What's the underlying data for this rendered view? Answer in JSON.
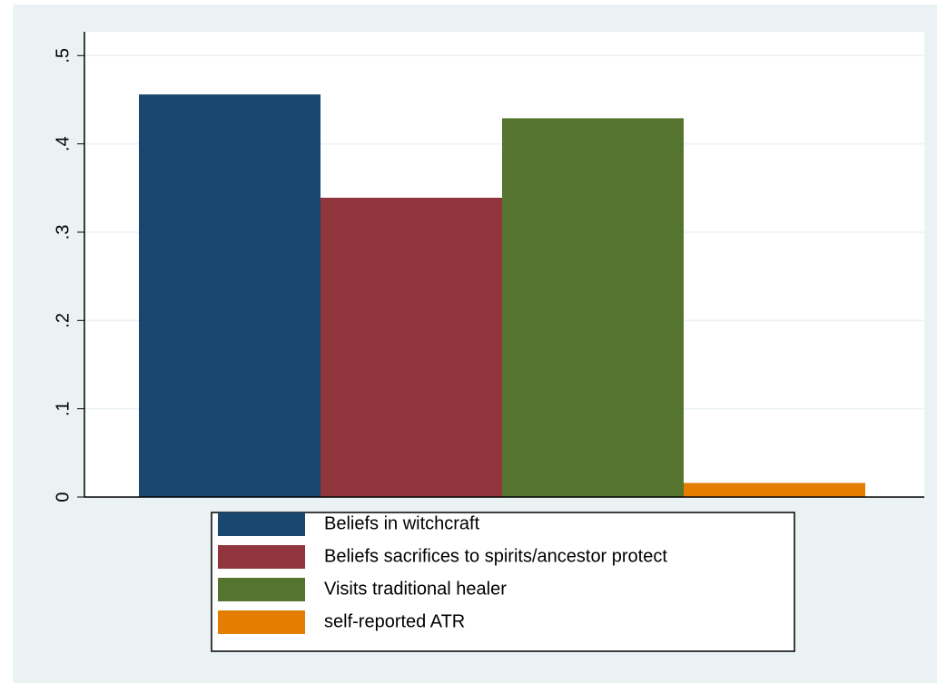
{
  "chart_data": {
    "type": "bar",
    "categories": [
      null
    ],
    "series": [
      {
        "name": "Beliefs in witchcraft",
        "color": "#1a476f",
        "values": [
          0.456
        ]
      },
      {
        "name": "Beliefs sacrifices to spirits/ancestor protect",
        "color": "#90353b",
        "values": [
          0.339
        ]
      },
      {
        "name": "Visits traditional healer",
        "color": "#55752f",
        "values": [
          0.429
        ]
      },
      {
        "name": "self-reported ATR",
        "color": "#e37e00",
        "values": [
          0.016
        ]
      }
    ],
    "ylim": [
      0,
      0.527
    ],
    "yticks": [
      0,
      {
        "value": 0.1,
        "label": ".1"
      },
      {
        "value": 0.2,
        "label": ".2"
      },
      {
        "value": 0.3,
        "label": ".3"
      },
      {
        "value": 0.4,
        "label": ".4"
      },
      {
        "value": 0.5,
        "label": ".5"
      }
    ],
    "grid": true,
    "legend": "bottom"
  }
}
